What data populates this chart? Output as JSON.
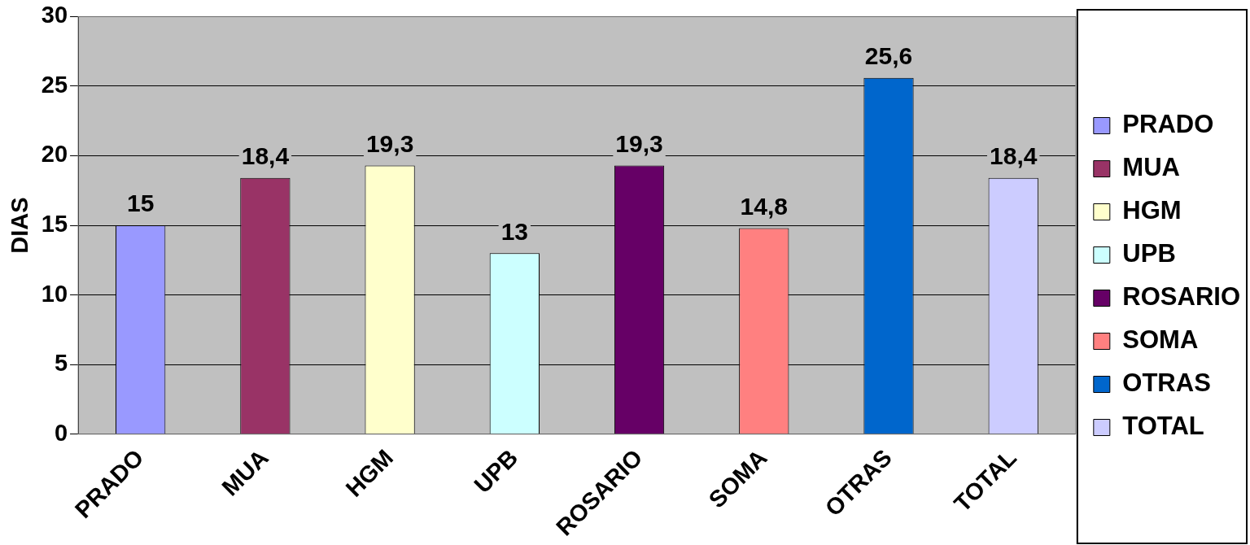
{
  "chart_data": {
    "type": "bar",
    "ylabel": "DIAS",
    "categories": [
      "PRADO",
      "MUA",
      "HGM",
      "UPB",
      "ROSARIO",
      "SOMA",
      "OTRAS",
      "TOTAL"
    ],
    "series": [
      {
        "name": "PRADO",
        "color": "#9999ff",
        "values": [
          15,
          null,
          null,
          null,
          null,
          null,
          null,
          null
        ],
        "value_labels": [
          "15",
          null,
          null,
          null,
          null,
          null,
          null,
          null
        ]
      },
      {
        "name": "MUA",
        "color": "#993366",
        "values": [
          null,
          18.4,
          null,
          null,
          null,
          null,
          null,
          null
        ],
        "value_labels": [
          null,
          "18,4",
          null,
          null,
          null,
          null,
          null,
          null
        ]
      },
      {
        "name": "HGM",
        "color": "#ffffcc",
        "values": [
          null,
          null,
          19.3,
          null,
          null,
          null,
          null,
          null
        ],
        "value_labels": [
          null,
          null,
          "19,3",
          null,
          null,
          null,
          null,
          null
        ]
      },
      {
        "name": "UPB",
        "color": "#ccffff",
        "values": [
          null,
          null,
          null,
          13,
          null,
          null,
          null,
          null
        ],
        "value_labels": [
          null,
          null,
          null,
          "13",
          null,
          null,
          null,
          null
        ]
      },
      {
        "name": "ROSARIO",
        "color": "#660066",
        "values": [
          null,
          null,
          null,
          null,
          19.3,
          null,
          null,
          null
        ],
        "value_labels": [
          null,
          null,
          null,
          null,
          "19,3",
          null,
          null,
          null
        ]
      },
      {
        "name": "SOMA",
        "color": "#ff8080",
        "values": [
          null,
          null,
          null,
          null,
          null,
          14.8,
          null,
          null
        ],
        "value_labels": [
          null,
          null,
          null,
          null,
          null,
          "14,8",
          null,
          null
        ]
      },
      {
        "name": "OTRAS",
        "color": "#0066cc",
        "values": [
          null,
          null,
          null,
          null,
          null,
          null,
          25.6,
          null
        ],
        "value_labels": [
          null,
          null,
          null,
          null,
          null,
          null,
          "25,6",
          null
        ]
      },
      {
        "name": "TOTAL",
        "color": "#ccccff",
        "values": [
          null,
          null,
          null,
          null,
          null,
          null,
          null,
          18.4
        ],
        "value_labels": [
          null,
          null,
          null,
          null,
          null,
          null,
          null,
          "18,4"
        ]
      }
    ],
    "ylim": [
      0,
      30
    ],
    "yticks": [
      0,
      5,
      10,
      15,
      20,
      25,
      30
    ],
    "grid": "y",
    "legend": "right"
  }
}
